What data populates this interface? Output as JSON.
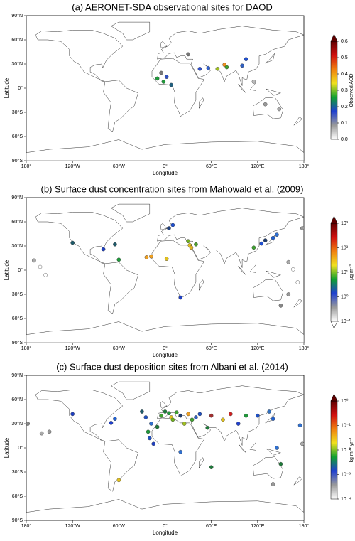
{
  "chart_data": [
    {
      "type": "scatter",
      "title": "(a) AERONET-SDA observational sites for DAOD",
      "xlabel": "Longitude",
      "ylabel": "Latitude",
      "xlim": [
        -180,
        180
      ],
      "ylim": [
        -90,
        90
      ],
      "xticks": [
        {
          "value": -180,
          "label": "180°"
        },
        {
          "value": -120,
          "label": "120°W"
        },
        {
          "value": -60,
          "label": "60°W"
        },
        {
          "value": 0,
          "label": "0°"
        },
        {
          "value": 60,
          "label": "60°E"
        },
        {
          "value": 120,
          "label": "120°E"
        },
        {
          "value": 180,
          "label": "180°"
        }
      ],
      "yticks": [
        {
          "value": -90,
          "label": "90°S"
        },
        {
          "value": -60,
          "label": "60°S"
        },
        {
          "value": -30,
          "label": "30°S"
        },
        {
          "value": 0,
          "label": "0°"
        },
        {
          "value": 30,
          "label": "30°N"
        },
        {
          "value": 60,
          "label": "60°N"
        },
        {
          "value": 90,
          "label": "90°N"
        }
      ],
      "x": [
        -5,
        2,
        -10,
        -2,
        8,
        30,
        45,
        56,
        68,
        77,
        80,
        105,
        100,
        130,
        148,
        115
      ],
      "y": [
        19,
        14,
        12,
        8,
        4,
        42,
        24,
        25,
        24,
        29,
        26,
        36,
        28,
        -20,
        -26,
        8
      ],
      "colors": [
        "#7a7a7a",
        "#3050c0",
        "#1f9a3a",
        "#1f9a3a",
        "#206080",
        "#777777",
        "#3050d0",
        "#3060d0",
        "#a0c020",
        "#f09020",
        "#40a030",
        "#2050d0",
        "#3060c0",
        "#999999",
        "#aaaaaa",
        "#bbbbbb"
      ],
      "colorbar": {
        "label": "Observed AOD",
        "scale": "linear",
        "extend": "max",
        "lim": [
          0,
          0.6
        ],
        "ticks": [
          {
            "value": 0,
            "label": "0.0"
          },
          {
            "value": 0.1,
            "label": "0.1"
          },
          {
            "value": 0.2,
            "label": "0.2"
          },
          {
            "value": 0.3,
            "label": "0.3"
          },
          {
            "value": 0.4,
            "label": "0.4"
          },
          {
            "value": 0.5,
            "label": "0.5"
          },
          {
            "value": 0.6,
            "label": "0.6"
          }
        ],
        "colormap": [
          "#ffffff",
          "#9a9a9a",
          "#2040d0",
          "#10a030",
          "#f0e020",
          "#f08010",
          "#d01010",
          "#600000"
        ]
      }
    },
    {
      "type": "scatter",
      "title": "(b) Surface dust concentration sites from Mahowald et al. (2009)",
      "xlabel": "Longitude",
      "ylabel": "Latitude",
      "xlim": [
        -180,
        180
      ],
      "ylim": [
        -90,
        90
      ],
      "xticks": [
        {
          "value": -180,
          "label": "180°"
        },
        {
          "value": -120,
          "label": "120°W"
        },
        {
          "value": -60,
          "label": "60°W"
        },
        {
          "value": 0,
          "label": "0°"
        },
        {
          "value": 60,
          "label": "60°E"
        },
        {
          "value": 120,
          "label": "120°E"
        },
        {
          "value": 180,
          "label": "180°"
        }
      ],
      "yticks": [
        {
          "value": -90,
          "label": "90°S"
        },
        {
          "value": -60,
          "label": "60°S"
        },
        {
          "value": -30,
          "label": "30°S"
        },
        {
          "value": 0,
          "label": "0°"
        },
        {
          "value": 30,
          "label": "30°N"
        },
        {
          "value": 60,
          "label": "60°N"
        },
        {
          "value": 90,
          "label": "90°N"
        }
      ],
      "x": [
        -120,
        -80,
        -65,
        -60,
        -24,
        -18,
        2,
        5,
        10,
        30,
        32,
        34,
        40,
        20,
        115,
        125,
        130,
        140,
        145,
        178,
        -170,
        -162,
        -155,
        160,
        166,
        172,
        160,
        150
      ],
      "y": [
        34,
        26,
        32,
        13,
        16,
        17,
        14,
        52,
        56,
        36,
        31,
        28,
        32,
        -34,
        28,
        33,
        37,
        40,
        44,
        52,
        12,
        4,
        -6,
        10,
        1,
        -15,
        -30,
        -44
      ],
      "colors": [
        "#1e5a6a",
        "#2040c0",
        "#1e5a6a",
        "#1f9a3a",
        "#f0a020",
        "#f0a020",
        "#e0c020",
        "#204080",
        "#2050d0",
        "#70b020",
        "#e0c020",
        "#e0b020",
        "#50a030",
        "#2040c0",
        "#40a030",
        "#2050d0",
        "#1e3a6a",
        "#2060d0",
        "#3070d0",
        "#999999",
        "#aaaaaa",
        "#ffffff",
        "#ffffff",
        "#aaaaaa",
        "#ffffff",
        "#ffffff",
        "#999999",
        "#888888"
      ],
      "colorbar": {
        "label": "μg m⁻³",
        "scale": "log",
        "extend": "both",
        "lim": [
          0.1,
          1000
        ],
        "ticks": [
          {
            "value": 0.1,
            "label": "10⁻¹"
          },
          {
            "value": 1,
            "label": "10⁰"
          },
          {
            "value": 10,
            "label": "10¹"
          },
          {
            "value": 100,
            "label": "10²"
          },
          {
            "value": 1000,
            "label": "10³"
          }
        ],
        "colormap": [
          "#ffffff",
          "#9a9a9a",
          "#2040d0",
          "#10a030",
          "#f0e020",
          "#f08010",
          "#d01010",
          "#600000"
        ]
      }
    },
    {
      "type": "scatter",
      "title": "(c) Surface dust deposition sites from Albani et al. (2014)",
      "xlabel": "Longitude",
      "ylabel": "Latitude",
      "xlim": [
        -180,
        180
      ],
      "ylim": [
        -90,
        90
      ],
      "xticks": [
        {
          "value": -180,
          "label": "180°"
        },
        {
          "value": -120,
          "label": "120°W"
        },
        {
          "value": -60,
          "label": "60°W"
        },
        {
          "value": 0,
          "label": "0°"
        },
        {
          "value": 60,
          "label": "60°E"
        },
        {
          "value": 120,
          "label": "120°E"
        },
        {
          "value": 180,
          "label": "180°"
        }
      ],
      "yticks": [
        {
          "value": -90,
          "label": "90°S"
        },
        {
          "value": -60,
          "label": "60°S"
        },
        {
          "value": -30,
          "label": "30°S"
        },
        {
          "value": 0,
          "label": "0°"
        },
        {
          "value": 30,
          "label": "30°N"
        },
        {
          "value": 60,
          "label": "60°N"
        },
        {
          "value": 90,
          "label": "90°N"
        }
      ],
      "x": [
        -178,
        -160,
        -150,
        -120,
        -70,
        -65,
        -30,
        -25,
        -22,
        -20,
        -18,
        -15,
        -10,
        -5,
        0,
        5,
        8,
        10,
        15,
        20,
        25,
        30,
        35,
        40,
        45,
        55,
        60,
        75,
        85,
        95,
        105,
        120,
        135,
        140,
        145,
        150,
        175,
        178,
        60,
        140,
        -60,
        20
      ],
      "y": [
        30,
        18,
        20,
        42,
        31,
        36,
        45,
        38,
        20,
        12,
        30,
        5,
        26,
        40,
        45,
        43,
        38,
        35,
        44,
        40,
        30,
        42,
        35,
        38,
        42,
        25,
        40,
        35,
        42,
        30,
        40,
        40,
        45,
        36,
        0,
        -20,
        28,
        5,
        -24,
        -45,
        -40,
        -5
      ],
      "colors": [
        "#888888",
        "#aaaaaa",
        "#999999",
        "#2040c0",
        "#2040d0",
        "#2060d0",
        "#1e5a6a",
        "#2050c0",
        "#1f9a3a",
        "#2050c0",
        "#3070d0",
        "#2040c0",
        "#1f7a3a",
        "#40a030",
        "#1f7a3a",
        "#1f9a3a",
        "#e0c020",
        "#70b020",
        "#40a030",
        "#1e3a6a",
        "#a0c020",
        "#f0a020",
        "#40a030",
        "#3060c0",
        "#2050c0",
        "#1f7a3a",
        "#a03030",
        "#e0c020",
        "#d02020",
        "#2040d0",
        "#1f9a3a",
        "#2050c0",
        "#3070c0",
        "#2060d0",
        "#3070d0",
        "#1f7a3a",
        "#3070d0",
        "#aaaaaa",
        "#1f7a3a",
        "#999999",
        "#e0c020",
        "#3070d0"
      ],
      "colorbar": {
        "label": "kg m⁻² yr⁻¹",
        "scale": "log",
        "extend": "max",
        "lim": [
          0.0001,
          1
        ],
        "ticks": [
          {
            "value": 0.0001,
            "label": "10⁻⁴"
          },
          {
            "value": 0.001,
            "label": "10⁻³"
          },
          {
            "value": 0.01,
            "label": "10⁻²"
          },
          {
            "value": 0.1,
            "label": "10⁻¹"
          },
          {
            "value": 1,
            "label": "10⁰"
          }
        ],
        "colormap": [
          "#ffffff",
          "#9a9a9a",
          "#2040d0",
          "#10a030",
          "#f0e020",
          "#f08010",
          "#d01010",
          "#600000"
        ]
      }
    }
  ]
}
